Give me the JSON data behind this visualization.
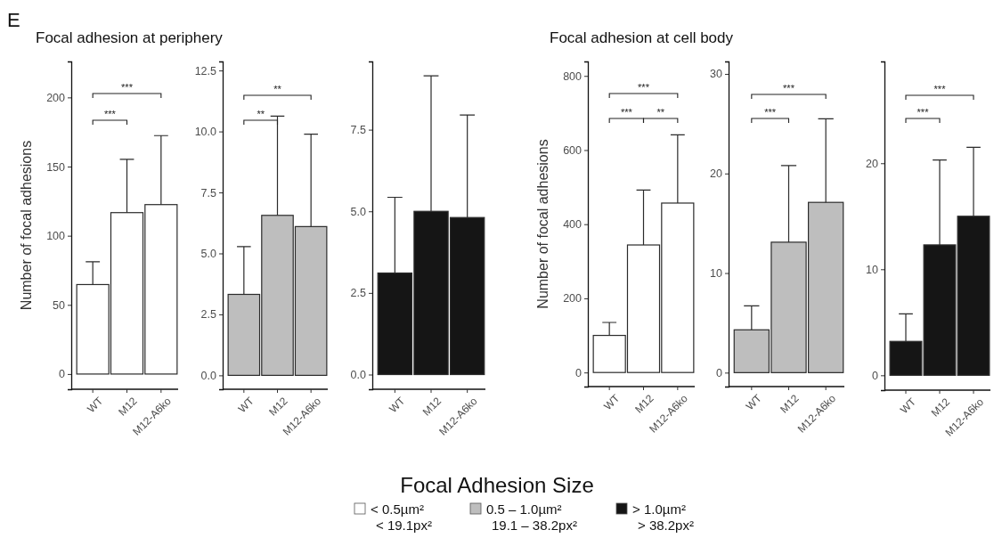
{
  "chart_data": [
    {
      "type": "bar",
      "title": "Focal adhesion at periphery",
      "ylabel": "Number of focal adhesions",
      "legend_title": "Focal Adhesion Size",
      "legend": "bottom",
      "annotations": [
        "E",
        "***",
        "***"
      ],
      "categories": [
        "WT",
        "M12",
        "M12-A6ko"
      ],
      "ylim": [
        -11,
        226
      ],
      "yticks": [
        0,
        50,
        100,
        150,
        200
      ],
      "series": [
        {
          "name": "< 0.5µm²\n< 19.1px²",
          "color": "#ffffff",
          "values": [
            64.7,
            116.7,
            122.5
          ],
          "errors": [
            [
              64.7,
              81.2
            ],
            [
              116.7,
              155.2
            ],
            [
              122.5,
              172.4
            ]
          ]
        }
      ]
    },
    {
      "type": "bar",
      "legend": "bottom",
      "annotations": [
        "**",
        "**"
      ],
      "categories": [
        "WT",
        "M12",
        "M12-A6ko"
      ],
      "ylim": [
        -0.57,
        12.87
      ],
      "yticks": [
        {
          "value": 0,
          "label": "0.0"
        },
        2.5,
        {
          "value": 5,
          "label": "5.0"
        },
        7.5,
        {
          "value": 10,
          "label": "10.0"
        },
        12.5
      ],
      "series": [
        {
          "name": "0.5 – 1.0µm²\n19.1 – 38.2px²",
          "color": "#bebebe",
          "values": [
            3.32,
            6.56,
            6.1
          ],
          "errors": [
            [
              3.32,
              5.28
            ],
            [
              6.56,
              10.63
            ],
            [
              6.1,
              9.89
            ]
          ]
        }
      ]
    },
    {
      "type": "bar",
      "legend": "bottom",
      "categories": [
        "WT",
        "M12",
        "M12-A6ko"
      ],
      "ylim": [
        -0.45,
        9.59
      ],
      "yticks": [
        {
          "value": 0,
          "label": "0.0"
        },
        2.5,
        {
          "value": 5,
          "label": "5.0"
        },
        7.5
      ],
      "series": [
        {
          "name": "> 1.0µm²\n> 38.2px²",
          "color": "#151515",
          "values": [
            3.11,
            5.0,
            4.81
          ],
          "errors": [
            [
              3.11,
              5.43
            ],
            [
              5.0,
              9.15
            ],
            [
              4.81,
              7.95
            ]
          ]
        }
      ]
    },
    {
      "type": "bar",
      "title": "Focal adhesion at cell body",
      "ylabel": "Number of focal adhesions",
      "annotations": [
        "***",
        "***",
        "**"
      ],
      "categories": [
        "WT",
        "M12",
        "M12-A6ko"
      ],
      "ylim": [
        -38,
        839
      ],
      "yticks": [
        0,
        200,
        400,
        600,
        800
      ],
      "series": [
        {
          "color": "#ffffff",
          "values": [
            100,
            344,
            457
          ],
          "errors": [
            [
              100,
              135
            ],
            [
              344,
              492
            ],
            [
              457,
              641
            ]
          ]
        }
      ]
    },
    {
      "type": "bar",
      "annotations": [
        "***",
        "***"
      ],
      "categories": [
        "WT",
        "M12",
        "M12-A6ko"
      ],
      "ylim": [
        -1.4,
        31.25
      ],
      "yticks": [
        0,
        10,
        20,
        30
      ],
      "series": [
        {
          "color": "#bebebe",
          "values": [
            4.3,
            13.1,
            17.1
          ],
          "errors": [
            [
              4.3,
              6.7
            ],
            [
              13.1,
              20.8
            ],
            [
              17.1,
              25.5
            ]
          ]
        }
      ]
    },
    {
      "type": "bar",
      "annotations": [
        "***",
        "***"
      ],
      "categories": [
        "WT",
        "M12",
        "M12-A6ko"
      ],
      "ylim": [
        -1.4,
        29.6
      ],
      "yticks": [
        0,
        10,
        20
      ],
      "series": [
        {
          "color": "#151515",
          "values": [
            3.2,
            12.3,
            15.0
          ],
          "errors": [
            [
              3.2,
              5.8
            ],
            [
              12.3,
              20.3
            ],
            [
              15.0,
              21.5
            ]
          ]
        }
      ]
    }
  ]
}
